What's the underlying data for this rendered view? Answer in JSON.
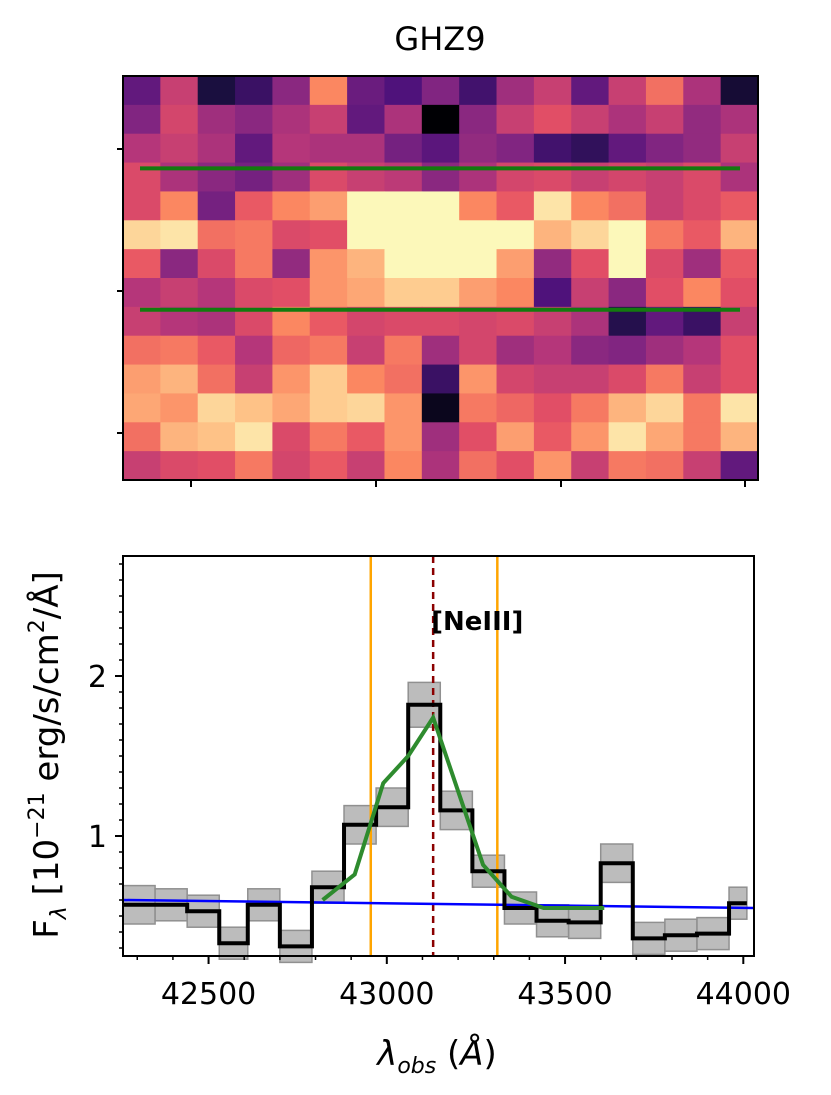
{
  "chart_data": [
    {
      "type": "heatmap",
      "title": "GHZ9",
      "grid": false,
      "colormap": "magma",
      "rows": 14,
      "cols": 17,
      "values": [
        [
          0.3,
          0.55,
          0.12,
          0.2,
          0.4,
          0.75,
          0.32,
          0.25,
          0.38,
          0.22,
          0.45,
          0.55,
          0.3,
          0.55,
          0.7,
          0.48,
          0.1
        ],
        [
          0.38,
          0.58,
          0.45,
          0.4,
          0.48,
          0.55,
          0.3,
          0.48,
          0.0,
          0.4,
          0.55,
          0.62,
          0.55,
          0.48,
          0.55,
          0.42,
          0.48
        ],
        [
          0.5,
          0.55,
          0.48,
          0.3,
          0.5,
          0.48,
          0.48,
          0.35,
          0.28,
          0.42,
          0.38,
          0.22,
          0.18,
          0.3,
          0.38,
          0.42,
          0.55
        ],
        [
          0.6,
          0.48,
          0.4,
          0.35,
          0.45,
          0.6,
          0.55,
          0.52,
          0.4,
          0.48,
          0.58,
          0.6,
          0.55,
          0.58,
          0.55,
          0.6,
          0.48
        ],
        [
          0.6,
          0.75,
          0.35,
          0.65,
          0.75,
          0.8,
          0.99,
          0.99,
          0.99,
          0.75,
          0.65,
          0.95,
          0.75,
          0.7,
          0.55,
          0.6,
          0.65
        ],
        [
          0.92,
          0.95,
          0.7,
          0.72,
          0.6,
          0.62,
          0.99,
          0.99,
          0.99,
          0.99,
          0.99,
          0.85,
          0.92,
          0.99,
          0.72,
          0.65,
          0.85
        ],
        [
          0.65,
          0.4,
          0.6,
          0.72,
          0.42,
          0.78,
          0.85,
          0.99,
          0.99,
          0.99,
          0.8,
          0.42,
          0.62,
          0.99,
          0.6,
          0.45,
          0.65
        ],
        [
          0.5,
          0.55,
          0.5,
          0.6,
          0.62,
          0.78,
          0.82,
          0.9,
          0.9,
          0.8,
          0.75,
          0.25,
          0.55,
          0.4,
          0.62,
          0.75,
          0.62
        ],
        [
          0.55,
          0.5,
          0.48,
          0.6,
          0.75,
          0.65,
          0.58,
          0.6,
          0.6,
          0.58,
          0.6,
          0.55,
          0.48,
          0.15,
          0.3,
          0.2,
          0.55
        ],
        [
          0.7,
          0.72,
          0.65,
          0.5,
          0.68,
          0.72,
          0.55,
          0.72,
          0.45,
          0.58,
          0.45,
          0.5,
          0.4,
          0.38,
          0.45,
          0.5,
          0.62
        ],
        [
          0.8,
          0.85,
          0.7,
          0.55,
          0.78,
          0.9,
          0.75,
          0.7,
          0.2,
          0.78,
          0.58,
          0.55,
          0.55,
          0.6,
          0.72,
          0.55,
          0.62
        ],
        [
          0.82,
          0.78,
          0.92,
          0.88,
          0.82,
          0.9,
          0.92,
          0.78,
          0.05,
          0.72,
          0.68,
          0.62,
          0.72,
          0.85,
          0.92,
          0.72,
          0.95
        ],
        [
          0.7,
          0.85,
          0.88,
          0.95,
          0.6,
          0.72,
          0.65,
          0.78,
          0.45,
          0.62,
          0.8,
          0.65,
          0.78,
          0.95,
          0.82,
          0.72,
          0.85
        ],
        [
          0.55,
          0.6,
          0.62,
          0.72,
          0.58,
          0.65,
          0.55,
          0.75,
          0.48,
          0.7,
          0.62,
          0.78,
          0.55,
          0.72,
          0.7,
          0.55,
          0.3
        ]
      ],
      "overlay_lines": [
        {
          "row_position": 3.2,
          "color": "#137a0e"
        },
        {
          "row_position": 8.1,
          "color": "#137a0e"
        }
      ]
    },
    {
      "type": "line",
      "xlabel": "λobs (Å)",
      "ylabel": "Fλ [10−21 erg/s/cm2/Å]",
      "xlim": [
        42260,
        44030
      ],
      "ylim": [
        0.25,
        2.75
      ],
      "grid": false,
      "xticks": [
        42500,
        43000,
        43500,
        44000
      ],
      "yticks": [
        1,
        2
      ],
      "series": [
        {
          "kind": "step",
          "color": "#000000",
          "edges": [
            42260,
            42350,
            42440,
            42530,
            42610,
            42700,
            42790,
            42880,
            42970,
            43060,
            43150,
            43240,
            43330,
            43420,
            43510,
            43600,
            43690,
            43780,
            43870,
            43960,
            44010
          ],
          "values": [
            0.57,
            0.57,
            0.53,
            0.33,
            0.57,
            0.31,
            0.68,
            1.07,
            1.18,
            1.82,
            1.16,
            0.78,
            0.55,
            0.47,
            0.46,
            0.83,
            0.36,
            0.38,
            0.39,
            0.58
          ],
          "errors": [
            0.12,
            0.1,
            0.1,
            0.1,
            0.1,
            0.1,
            0.1,
            0.12,
            0.12,
            0.14,
            0.12,
            0.1,
            0.1,
            0.1,
            0.1,
            0.12,
            0.1,
            0.1,
            0.1,
            0.1
          ]
        },
        {
          "kind": "line",
          "color": "#2e8b2e",
          "x": [
            42820,
            42910,
            42990,
            43060,
            43130,
            43200,
            43270,
            43350,
            43440,
            43530,
            43610
          ],
          "y": [
            0.6,
            0.76,
            1.33,
            1.5,
            1.74,
            1.28,
            0.82,
            0.62,
            0.55,
            0.55,
            0.55
          ]
        },
        {
          "kind": "line",
          "color": "#0000ff",
          "x": [
            42260,
            44030
          ],
          "y": [
            0.6,
            0.55
          ]
        }
      ],
      "vlines": [
        {
          "x": 42955,
          "color": "#ffa500",
          "style": "solid"
        },
        {
          "x": 43130,
          "color": "#8b0000",
          "style": "dashed"
        },
        {
          "x": 43310,
          "color": "#ffa500",
          "style": "solid"
        }
      ],
      "annotations": [
        {
          "text": "[NeIII]",
          "x": 43130,
          "y": 2.35
        }
      ]
    }
  ]
}
